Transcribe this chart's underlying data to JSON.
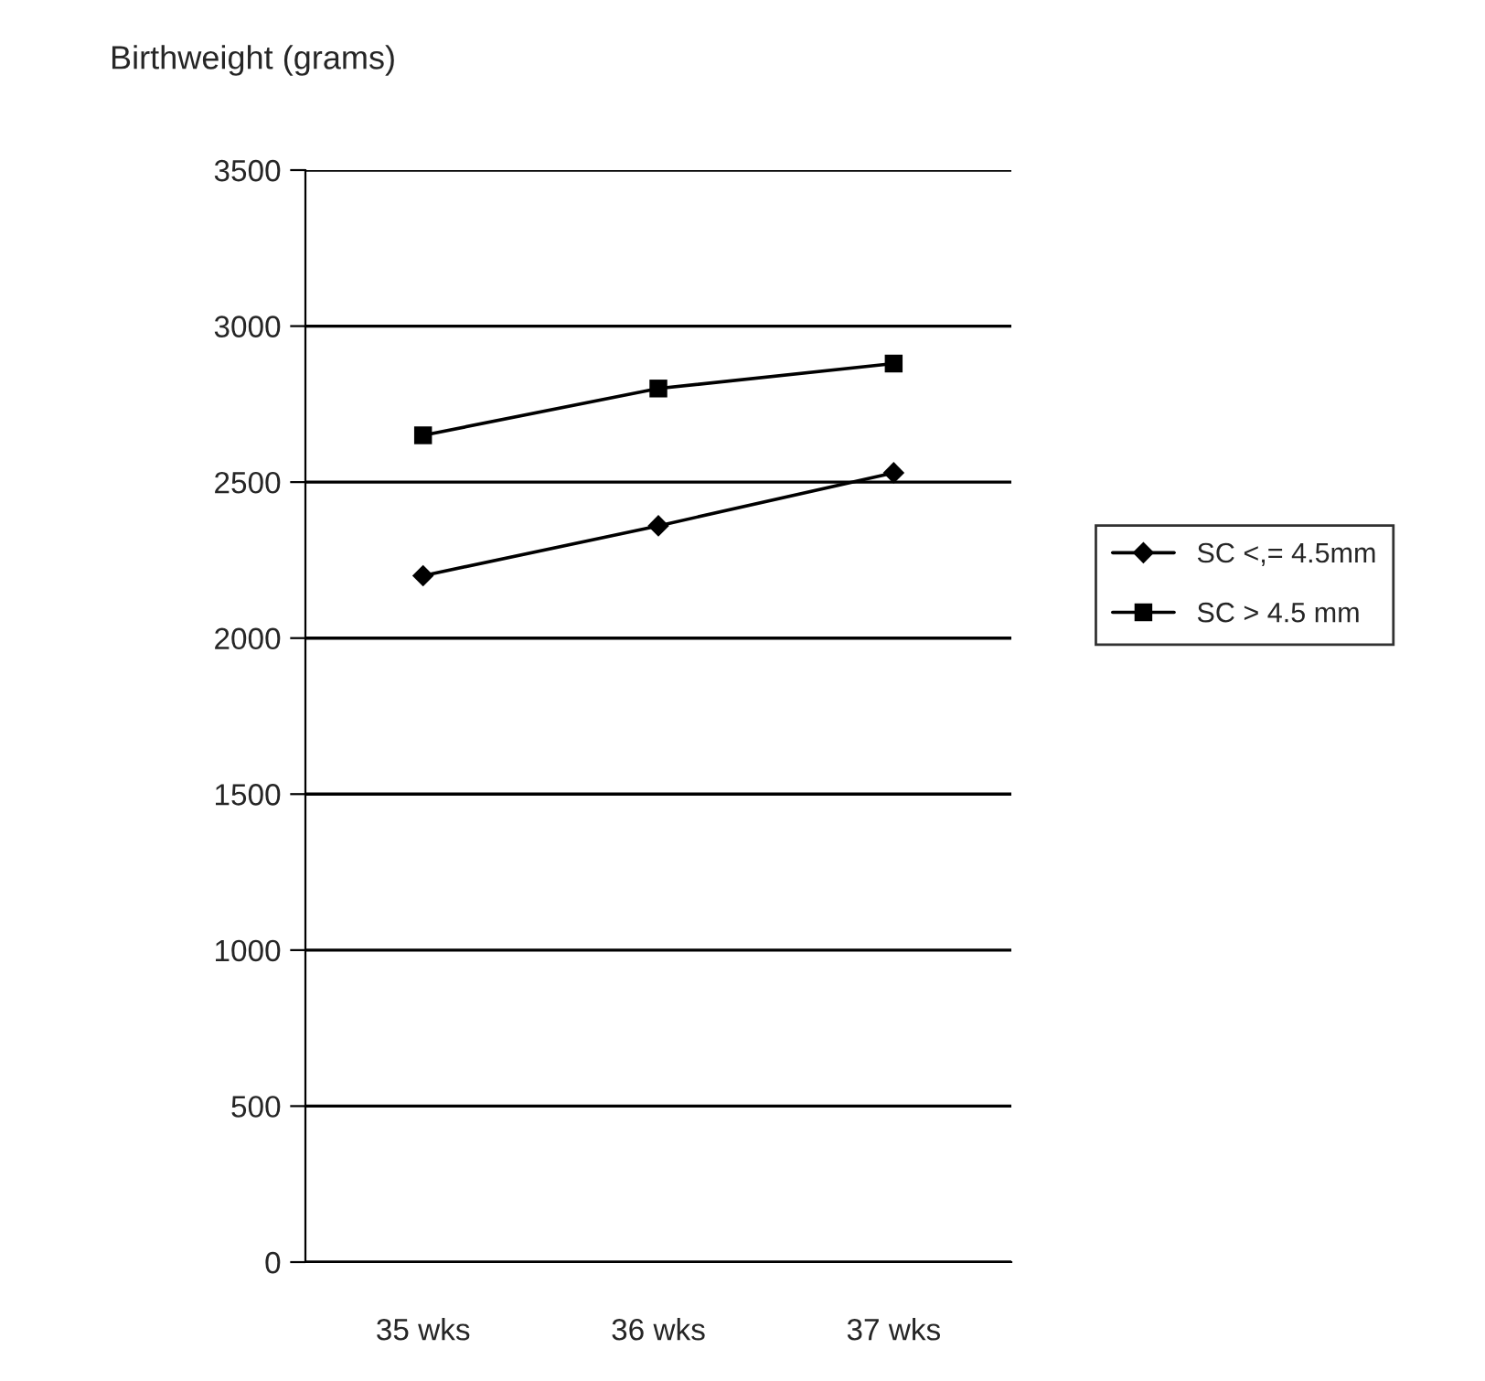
{
  "chart_data": {
    "type": "line",
    "ylabel": "Birthweight (grams)",
    "categories": [
      "35 wks",
      "36 wks",
      "37 wks"
    ],
    "series": [
      {
        "name": "SC <,= 4.5mm",
        "color": "#000000",
        "marker": "diamond",
        "values": [
          2200,
          2360,
          2530
        ]
      },
      {
        "name": "SC > 4.5 mm",
        "color": "#000000",
        "marker": "square",
        "values": [
          2650,
          2800,
          2880
        ]
      }
    ],
    "ylim": [
      0,
      3500
    ],
    "yticks": [
      0,
      500,
      1000,
      1500,
      2000,
      2500,
      3000,
      3500
    ],
    "grid": "y",
    "legend": "right"
  }
}
